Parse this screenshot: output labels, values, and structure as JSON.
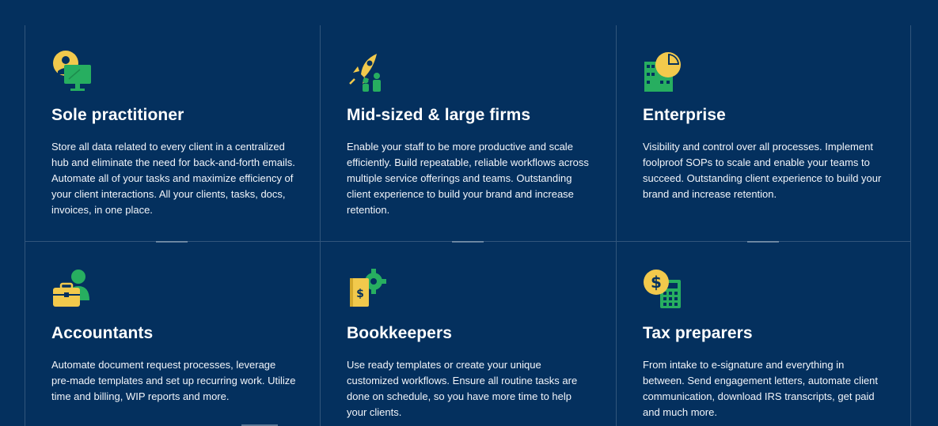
{
  "cards": [
    {
      "title": "Sole practitioner",
      "icon": "person-monitor-icon",
      "text": "Store all data related to every client in a centralized hub and eliminate the need for back-and-forth emails. Automate all of your tasks and maximize efficiency of your client interactions. All your clients, tasks, docs, invoices, in one place."
    },
    {
      "title": "Mid-sized & large firms",
      "icon": "rocket-team-icon",
      "text": "Enable your staff to be more productive and scale efficiently. Build repeatable, reliable workflows across multiple service offerings and teams. Outstanding client experience to build your brand and increase retention."
    },
    {
      "title": "Enterprise",
      "icon": "building-chart-icon",
      "text": "Visibility and control over all processes. Implement foolproof SOPs to scale and enable your teams to succeed. Outstanding client experience to build your brand and increase retention."
    },
    {
      "title": "Accountants",
      "icon": "person-briefcase-icon",
      "text": "Automate document request processes, leverage pre-made templates and set up recurring work. Utilize time and billing, WIP reports and more."
    },
    {
      "title": "Bookkeepers",
      "icon": "ledger-gear-icon",
      "text": "Use ready templates or create your unique customized workflows. Ensure all routine tasks are done on schedule, so you have more time to help your clients."
    },
    {
      "title": "Tax preparers",
      "icon": "dollar-calculator-icon",
      "text": "From intake to e-signature and everything in between. Send engagement letters, automate client communication, download IRS transcripts, get paid and much more."
    }
  ],
  "colors": {
    "background": "#04305e",
    "accent_yellow": "#f2c94c",
    "accent_green": "#27ae60"
  }
}
